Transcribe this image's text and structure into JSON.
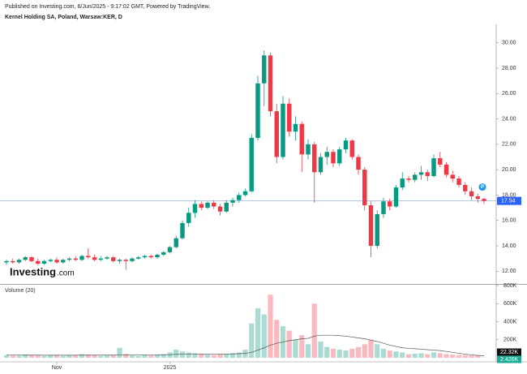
{
  "header": {
    "published": "Published on Investing.com, 6/Jun/2025 - 9:17:02 GMT, Powered by TradingView.",
    "symbol": "Kernel Holding SA, Poland, Warsaw:KER, D"
  },
  "logo": {
    "main": "Investing",
    "suffix": ".com"
  },
  "chart_data": [
    {
      "type": "candlestick",
      "up_color": "#089981",
      "down_color": "#f23645",
      "categories": [
        null,
        null,
        null,
        null,
        null,
        null,
        null,
        null,
        "Nov",
        null,
        null,
        null,
        null,
        null,
        null,
        null,
        null,
        null,
        null,
        null,
        null,
        null,
        null,
        null,
        null,
        null,
        "2025",
        null,
        null,
        null,
        null,
        null,
        null,
        null,
        null,
        null,
        null,
        null,
        null,
        null,
        null,
        null,
        null,
        null,
        null,
        null,
        null,
        null,
        null,
        null,
        null,
        null,
        null,
        null,
        null,
        null,
        null,
        null,
        null,
        null,
        null,
        null,
        null,
        null,
        null,
        null,
        null,
        null,
        null,
        null,
        null,
        null,
        null,
        null,
        null,
        null,
        null
      ],
      "open": [
        12.7,
        12.8,
        12.7,
        12.9,
        13.1,
        12.8,
        12.6,
        12.8,
        12.9,
        12.7,
        12.9,
        13.0,
        12.9,
        13.2,
        13.1,
        12.9,
        13.0,
        13.1,
        12.8,
        12.9,
        12.8,
        13.0,
        13.1,
        13.2,
        13.1,
        13.3,
        13.5,
        13.9,
        14.6,
        15.8,
        16.6,
        17.3,
        17.0,
        17.4,
        17.1,
        16.7,
        17.4,
        17.6,
        18.0,
        18.3,
        22.5,
        26.8,
        29.0,
        24.6,
        21.0,
        25.2,
        23.0,
        23.6,
        21.2,
        22.0,
        19.8,
        21.0,
        21.4,
        20.5,
        21.6,
        22.3,
        21.0,
        20.0,
        17.2,
        14.0,
        16.5,
        17.5,
        17.1,
        18.6,
        19.3,
        19.2,
        19.6,
        19.8,
        19.5,
        20.9,
        20.4,
        19.6,
        19.3,
        18.8,
        18.3,
        17.9,
        17.7
      ],
      "high": [
        12.9,
        13.0,
        13.0,
        13.2,
        13.2,
        13.0,
        12.9,
        13.0,
        13.1,
        13.0,
        13.1,
        13.2,
        13.3,
        13.8,
        13.3,
        13.2,
        13.2,
        13.2,
        13.0,
        13.0,
        13.1,
        13.2,
        13.3,
        13.3,
        13.4,
        13.6,
        14.0,
        14.8,
        16.0,
        17.0,
        17.6,
        17.5,
        17.5,
        17.6,
        17.3,
        17.6,
        17.8,
        18.2,
        18.5,
        22.8,
        27.4,
        29.4,
        29.2,
        25.2,
        25.8,
        25.6,
        24.2,
        23.8,
        22.4,
        22.2,
        21.3,
        21.8,
        21.6,
        21.8,
        22.5,
        22.4,
        21.2,
        20.2,
        17.5,
        16.8,
        17.8,
        17.7,
        18.8,
        19.8,
        19.5,
        19.8,
        20.3,
        20.0,
        21.2,
        21.4,
        20.6,
        19.9,
        19.5,
        19.0,
        18.6,
        18.1,
        17.8
      ],
      "low": [
        12.5,
        12.6,
        12.6,
        12.8,
        12.7,
        12.5,
        12.5,
        12.7,
        12.6,
        12.6,
        12.8,
        12.8,
        12.8,
        13.0,
        12.8,
        12.8,
        12.9,
        12.7,
        12.6,
        12.1,
        12.7,
        12.9,
        13.0,
        13.0,
        13.0,
        13.2,
        13.4,
        13.8,
        14.5,
        15.5,
        16.2,
        16.8,
        16.9,
        16.9,
        16.4,
        16.6,
        17.1,
        17.4,
        17.9,
        18.2,
        22.3,
        25.0,
        24.2,
        20.5,
        20.8,
        22.6,
        22.3,
        19.8,
        20.8,
        17.4,
        19.6,
        20.4,
        20.2,
        20.3,
        21.3,
        20.8,
        19.6,
        16.8,
        13.1,
        13.8,
        16.2,
        16.8,
        17.0,
        18.4,
        19.0,
        19.0,
        19.2,
        19.1,
        19.4,
        20.2,
        19.4,
        19.0,
        18.6,
        18.0,
        17.6,
        17.4,
        17.3
      ],
      "close": [
        12.8,
        12.7,
        12.9,
        13.1,
        12.8,
        12.6,
        12.8,
        12.9,
        12.7,
        12.9,
        13.0,
        12.9,
        13.2,
        13.1,
        12.9,
        13.0,
        13.1,
        12.8,
        12.9,
        12.8,
        13.0,
        13.1,
        13.2,
        13.1,
        13.3,
        13.5,
        13.9,
        14.6,
        15.8,
        16.6,
        17.3,
        17.0,
        17.4,
        17.1,
        16.7,
        17.4,
        17.6,
        18.0,
        18.3,
        22.5,
        26.8,
        29.0,
        24.6,
        21.0,
        25.2,
        23.0,
        23.6,
        21.2,
        22.0,
        19.8,
        21.0,
        21.4,
        20.5,
        21.6,
        22.3,
        21.0,
        20.0,
        17.2,
        14.0,
        16.5,
        17.5,
        17.1,
        18.6,
        19.3,
        19.2,
        19.6,
        19.8,
        19.5,
        20.9,
        20.4,
        19.6,
        19.3,
        18.8,
        18.3,
        17.9,
        17.7,
        17.54
      ],
      "ylim": [
        11,
        31
      ],
      "yticks": [
        {
          "value": 12,
          "label": "12.00"
        },
        {
          "value": 14,
          "label": "14.00"
        },
        {
          "value": 16,
          "label": "16.00"
        },
        {
          "value": 18,
          "label": "18.00"
        },
        {
          "value": 20,
          "label": "20.00"
        },
        {
          "value": 22,
          "label": "22.00"
        },
        {
          "value": 24,
          "label": "24.00"
        },
        {
          "value": 26,
          "label": "26.00"
        },
        {
          "value": 28,
          "label": "28.00"
        },
        {
          "value": 30,
          "label": "30.00"
        }
      ],
      "last_price": 17.54,
      "marker_label": "P"
    },
    {
      "type": "bar",
      "title": "Volume (20)",
      "up_color": "rgba(8,153,129,0.35)",
      "down_color": "rgba(242,54,69,0.35)",
      "average_color": "#555555",
      "values": [
        30000,
        25000,
        20000,
        35000,
        30000,
        25000,
        20000,
        30000,
        25000,
        20000,
        30000,
        25000,
        40000,
        35000,
        30000,
        20000,
        25000,
        30000,
        110000,
        40000,
        25000,
        20000,
        30000,
        25000,
        35000,
        40000,
        60000,
        90000,
        70000,
        60000,
        50000,
        40000,
        35000,
        30000,
        40000,
        45000,
        50000,
        60000,
        90000,
        380000,
        550000,
        480000,
        700000,
        420000,
        350000,
        300000,
        200000,
        250000,
        150000,
        600000,
        180000,
        120000,
        100000,
        90000,
        80000,
        100000,
        120000,
        150000,
        200000,
        150000,
        100000,
        80000,
        70000,
        60000,
        40000,
        45000,
        50000,
        40000,
        60000,
        50000,
        40000,
        35000,
        30000,
        30000,
        25000,
        25000,
        2426
      ],
      "average": [
        30000,
        30000,
        29000,
        29000,
        29000,
        29000,
        28000,
        28000,
        28000,
        28000,
        28000,
        28000,
        29000,
        29000,
        29000,
        29000,
        29000,
        29000,
        33000,
        34000,
        33000,
        33000,
        33000,
        33000,
        33000,
        34000,
        35000,
        38000,
        40000,
        41000,
        42000,
        42000,
        42000,
        41000,
        41000,
        42000,
        43000,
        45000,
        48000,
        60000,
        85000,
        110000,
        140000,
        160000,
        175000,
        190000,
        200000,
        210000,
        215000,
        240000,
        250000,
        250000,
        250000,
        245000,
        240000,
        230000,
        220000,
        210000,
        195000,
        180000,
        160000,
        140000,
        125000,
        110000,
        105000,
        100000,
        95000,
        90000,
        85000,
        80000,
        70000,
        60000,
        50000,
        40000,
        32000,
        26000,
        22320
      ],
      "ylim": [
        0,
        800000
      ],
      "yticks": [
        {
          "value": 200000,
          "label": "200K"
        },
        {
          "value": 400000,
          "label": "400K"
        },
        {
          "value": 600000,
          "label": "600K"
        },
        {
          "value": 800000,
          "label": "800K"
        }
      ],
      "last_average": {
        "value": 22320,
        "label": "22.32K"
      },
      "last_volume": {
        "value": 2426,
        "label": "2.426K"
      }
    }
  ]
}
